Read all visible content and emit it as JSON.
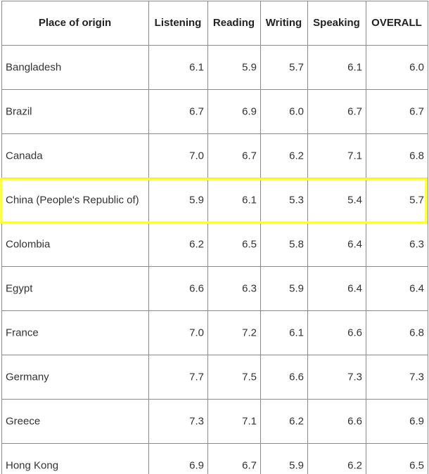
{
  "table": {
    "header": [
      "Place of origin",
      "Listening",
      "Reading",
      "Writing",
      "Speaking",
      "OVERALL"
    ],
    "rows": [
      [
        "Bangladesh",
        "6.1",
        "5.9",
        "5.7",
        "6.1",
        "6.0"
      ],
      [
        "Brazil",
        "6.7",
        "6.9",
        "6.0",
        "6.7",
        "6.7"
      ],
      [
        "Canada",
        "7.0",
        "6.7",
        "6.2",
        "7.1",
        "6.8"
      ],
      [
        "China (People's Republic of)",
        "5.9",
        "6.1",
        "5.3",
        "5.4",
        "5.7"
      ],
      [
        "Colombia",
        "6.2",
        "6.5",
        "5.8",
        "6.4",
        "6.3"
      ],
      [
        "Egypt",
        "6.6",
        "6.3",
        "5.9",
        "6.4",
        "6.4"
      ],
      [
        "France",
        "7.0",
        "7.2",
        "6.1",
        "6.6",
        "6.8"
      ],
      [
        "Germany",
        "7.7",
        "7.5",
        "6.6",
        "7.3",
        "7.3"
      ],
      [
        "Greece",
        "7.3",
        "7.1",
        "6.2",
        "6.6",
        "6.9"
      ],
      [
        "Hong Kong",
        "6.9",
        "6.7",
        "5.9",
        "6.2",
        "6.5"
      ]
    ]
  }
}
